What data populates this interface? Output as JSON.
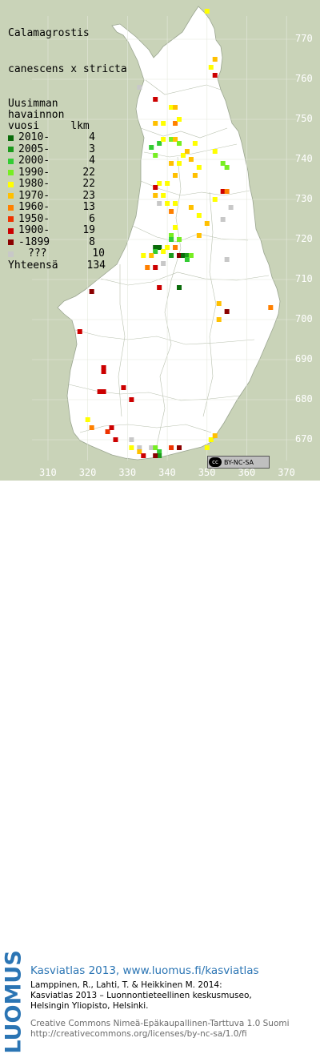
{
  "title": [
    "Calamagrostis",
    "canescens x stricta"
  ],
  "legend": {
    "header": [
      "Uusimman",
      "havainnon",
      "vuosi     lkm"
    ],
    "entries": [
      {
        "label": "2010-",
        "count": "4",
        "color": "#0b6b0b"
      },
      {
        "label": "2005-",
        "count": "3",
        "color": "#1c9a1c"
      },
      {
        "label": "2000-",
        "count": "4",
        "color": "#33cc33"
      },
      {
        "label": "1990-",
        "count": "22",
        "color": "#77ee22"
      },
      {
        "label": "1980-",
        "count": "22",
        "color": "#ffff00"
      },
      {
        "label": "1970-",
        "count": "23",
        "color": "#ffc000"
      },
      {
        "label": "1960-",
        "count": "13",
        "color": "#ff8000"
      },
      {
        "label": "1950-",
        "count": "6",
        "color": "#ee3300"
      },
      {
        "label": "1900-",
        "count": "19",
        "color": "#cc0000"
      },
      {
        "label": "-1899",
        "count": "8",
        "color": "#8b0000"
      },
      {
        "label": "???",
        "count": "10",
        "color": "#c8c8c8"
      }
    ],
    "total_label": "Yhteensä",
    "total_count": "134"
  },
  "y_axis": [
    "770",
    "760",
    "750",
    "740",
    "730",
    "720",
    "710",
    "700",
    "690",
    "680",
    "670"
  ],
  "x_axis": [
    "310",
    "320",
    "330",
    "340",
    "350",
    "360",
    "370"
  ],
  "cc_badge": {
    "cc": "cc",
    "text": "BY-NC-SA"
  },
  "footer": {
    "logo": "LUOMUS",
    "site": "Kasviatlas 2013, www.luomus.fi/kasviatlas",
    "citation": [
      "Lamppinen, R., Lahti, T. & Heikkinen M. 2014:",
      "Kasviatlas 2013 – Luonnontieteellinen keskusmuseo,",
      "Helsingin Yliopisto, Helsinki."
    ],
    "license": [
      "Creative Commons Nimeä-Epäkaupallinen-Tarttuva 1.0 Suomi",
      "http://creativecommons.org/licenses/by-nc-sa/1.0/fi"
    ]
  },
  "colors": {
    "sea": "#c9d3b8",
    "land": "#ffffff",
    "accent": "#2b75b4"
  },
  "observations": [
    {
      "e": 350,
      "n": 777,
      "c": 4
    },
    {
      "e": 352,
      "n": 765,
      "c": 5
    },
    {
      "e": 351,
      "n": 763,
      "c": 4
    },
    {
      "e": 352,
      "n": 761,
      "c": 8
    },
    {
      "e": 333,
      "n": 758,
      "c": 10
    },
    {
      "e": 337,
      "n": 755,
      "c": 8
    },
    {
      "e": 341,
      "n": 753,
      "c": 4
    },
    {
      "e": 342,
      "n": 753,
      "c": 5
    },
    {
      "e": 337,
      "n": 749,
      "c": 5
    },
    {
      "e": 339,
      "n": 749,
      "c": 4
    },
    {
      "e": 342,
      "n": 749,
      "c": 6
    },
    {
      "e": 343,
      "n": 750,
      "c": 4
    },
    {
      "e": 338,
      "n": 744,
      "c": 2
    },
    {
      "e": 339,
      "n": 745,
      "c": 4
    },
    {
      "e": 341,
      "n": 745,
      "c": 3
    },
    {
      "e": 342,
      "n": 745,
      "c": 5
    },
    {
      "e": 343,
      "n": 744,
      "c": 3
    },
    {
      "e": 347,
      "n": 744,
      "c": 4
    },
    {
      "e": 352,
      "n": 742,
      "c": 4
    },
    {
      "e": 344,
      "n": 741,
      "c": 4
    },
    {
      "e": 345,
      "n": 742,
      "c": 5
    },
    {
      "e": 346,
      "n": 740,
      "c": 5
    },
    {
      "e": 336,
      "n": 743,
      "c": 2
    },
    {
      "e": 337,
      "n": 741,
      "c": 3
    },
    {
      "e": 341,
      "n": 739,
      "c": 5
    },
    {
      "e": 343,
      "n": 739,
      "c": 4
    },
    {
      "e": 354,
      "n": 739,
      "c": 3
    },
    {
      "e": 355,
      "n": 738,
      "c": 3
    },
    {
      "e": 348,
      "n": 738,
      "c": 4
    },
    {
      "e": 347,
      "n": 736,
      "c": 5
    },
    {
      "e": 342,
      "n": 736,
      "c": 5
    },
    {
      "e": 340,
      "n": 734,
      "c": 4
    },
    {
      "e": 338,
      "n": 734,
      "c": 4
    },
    {
      "e": 337,
      "n": 731,
      "c": 5
    },
    {
      "e": 339,
      "n": 731,
      "c": 4
    },
    {
      "e": 337,
      "n": 733,
      "c": 8
    },
    {
      "e": 338,
      "n": 729,
      "c": 10
    },
    {
      "e": 340,
      "n": 729,
      "c": 4
    },
    {
      "e": 341,
      "n": 727,
      "c": 6
    },
    {
      "e": 342,
      "n": 729,
      "c": 4
    },
    {
      "e": 346,
      "n": 728,
      "c": 5
    },
    {
      "e": 348,
      "n": 726,
      "c": 4
    },
    {
      "e": 350,
      "n": 724,
      "c": 5
    },
    {
      "e": 352,
      "n": 730,
      "c": 4
    },
    {
      "e": 354,
      "n": 732,
      "c": 8
    },
    {
      "e": 355,
      "n": 732,
      "c": 6
    },
    {
      "e": 356,
      "n": 728,
      "c": 10
    },
    {
      "e": 354,
      "n": 725,
      "c": 10
    },
    {
      "e": 348,
      "n": 721,
      "c": 5
    },
    {
      "e": 342,
      "n": 723,
      "c": 4
    },
    {
      "e": 341,
      "n": 721,
      "c": 3
    },
    {
      "e": 341,
      "n": 720,
      "c": 2
    },
    {
      "e": 343,
      "n": 720,
      "c": 3
    },
    {
      "e": 342,
      "n": 718,
      "c": 6
    },
    {
      "e": 337,
      "n": 718,
      "c": 0
    },
    {
      "e": 338,
      "n": 718,
      "c": 0
    },
    {
      "e": 337,
      "n": 717,
      "c": 2
    },
    {
      "e": 339,
      "n": 717,
      "c": 4
    },
    {
      "e": 340,
      "n": 718,
      "c": 4
    },
    {
      "e": 336,
      "n": 716,
      "c": 5
    },
    {
      "e": 334,
      "n": 716,
      "c": 4
    },
    {
      "e": 335,
      "n": 713,
      "c": 6
    },
    {
      "e": 337,
      "n": 713,
      "c": 8
    },
    {
      "e": 339,
      "n": 714,
      "c": 10
    },
    {
      "e": 341,
      "n": 716,
      "c": 1
    },
    {
      "e": 343,
      "n": 716,
      "c": 9
    },
    {
      "e": 344,
      "n": 716,
      "c": 0
    },
    {
      "e": 345,
      "n": 716,
      "c": 1
    },
    {
      "e": 345,
      "n": 715,
      "c": 2
    },
    {
      "e": 346,
      "n": 716,
      "c": 3
    },
    {
      "e": 355,
      "n": 715,
      "c": 10
    },
    {
      "e": 343,
      "n": 708,
      "c": 0
    },
    {
      "e": 353,
      "n": 704,
      "c": 5
    },
    {
      "e": 355,
      "n": 702,
      "c": 9
    },
    {
      "e": 353,
      "n": 700,
      "c": 5
    },
    {
      "e": 366,
      "n": 703,
      "c": 6
    },
    {
      "e": 321,
      "n": 707,
      "c": 9
    },
    {
      "e": 318,
      "n": 697,
      "c": 8
    },
    {
      "e": 324,
      "n": 688,
      "c": 8
    },
    {
      "e": 324,
      "n": 687,
      "c": 8
    },
    {
      "e": 323,
      "n": 682,
      "c": 8
    },
    {
      "e": 324,
      "n": 682,
      "c": 8
    },
    {
      "e": 329,
      "n": 683,
      "c": 8
    },
    {
      "e": 331,
      "n": 680,
      "c": 8
    },
    {
      "e": 320,
      "n": 675,
      "c": 4
    },
    {
      "e": 321,
      "n": 673,
      "c": 6
    },
    {
      "e": 325,
      "n": 672,
      "c": 7
    },
    {
      "e": 326,
      "n": 673,
      "c": 8
    },
    {
      "e": 327,
      "n": 670,
      "c": 8
    },
    {
      "e": 331,
      "n": 670,
      "c": 10
    },
    {
      "e": 331,
      "n": 668,
      "c": 4
    },
    {
      "e": 333,
      "n": 668,
      "c": 10
    },
    {
      "e": 333,
      "n": 667,
      "c": 5
    },
    {
      "e": 334,
      "n": 666,
      "c": 8
    },
    {
      "e": 336,
      "n": 668,
      "c": 10
    },
    {
      "e": 337,
      "n": 668,
      "c": 3
    },
    {
      "e": 338,
      "n": 667,
      "c": 2
    },
    {
      "e": 338,
      "n": 666,
      "c": 1
    },
    {
      "e": 337,
      "n": 666,
      "c": 9
    },
    {
      "e": 341,
      "n": 668,
      "c": 7
    },
    {
      "e": 343,
      "n": 668,
      "c": 9
    },
    {
      "e": 350,
      "n": 668,
      "c": 4
    },
    {
      "e": 351,
      "n": 670,
      "c": 4
    },
    {
      "e": 352,
      "n": 671,
      "c": 5
    },
    {
      "e": 338,
      "n": 708,
      "c": 8
    }
  ]
}
